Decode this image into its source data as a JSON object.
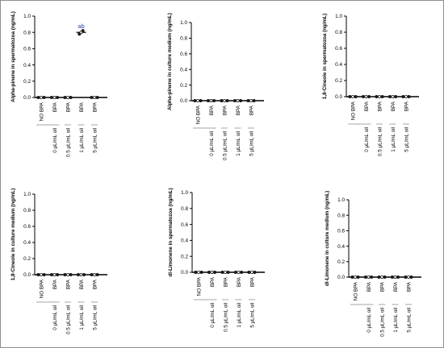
{
  "figure": {
    "tick_labels": [
      "0.0",
      "0.2",
      "0.4",
      "0.6",
      "0.8",
      "1.0"
    ],
    "annotation": "ab"
  },
  "chart_data": [
    {
      "type": "scatter",
      "ylabel": "Alpha-pinene in spermatozoa (ng/mL)",
      "ylim": [
        0,
        1.0
      ],
      "yticks": [
        0.0,
        0.2,
        0.4,
        0.6,
        0.8,
        1.0
      ],
      "categories": [
        "NO BPA",
        "BPA",
        "BPA",
        "BPA",
        "BPA"
      ],
      "groups": [
        "0 µL/mL oil",
        "0.5 µL/mL oil",
        "1 µL/mL oil",
        "5 µL/mL oil"
      ],
      "series": [
        {
          "values": [
            [
              0,
              0,
              0
            ],
            [
              0,
              0,
              0
            ],
            [
              0,
              0,
              0
            ],
            [
              0.78,
              0.8,
              0.82
            ],
            [
              0,
              0,
              0
            ]
          ]
        }
      ],
      "means": [
        0,
        0,
        0,
        0.8,
        0
      ],
      "annotations": [
        {
          "category_index": 3,
          "text": "ab"
        }
      ]
    },
    {
      "type": "scatter",
      "ylabel": "Alpha-pinene in culture medium (ng/mL)",
      "ylim": [
        0,
        1.0
      ],
      "yticks": [
        0.0,
        0.2,
        0.4,
        0.6,
        0.8,
        1.0
      ],
      "categories": [
        "NO BPA",
        "BPA",
        "BPA",
        "BPA",
        "BPA"
      ],
      "groups": [
        "0 µL/mL oil",
        "0.5 µL/mL oil",
        "1 µL/mL oil",
        "5 µL/mL oil"
      ],
      "series": [
        {
          "values": [
            [
              0,
              0,
              0
            ],
            [
              0,
              0,
              0
            ],
            [
              0,
              0,
              0
            ],
            [
              0,
              0,
              0
            ],
            [
              0,
              0,
              0
            ]
          ]
        }
      ],
      "means": [
        0,
        0,
        0,
        0,
        0
      ]
    },
    {
      "type": "scatter",
      "ylabel": "1,8-Cineole in spermatozoa (ng/mL)",
      "ylim": [
        0,
        1.0
      ],
      "yticks": [
        0.0,
        0.2,
        0.4,
        0.6,
        0.8,
        1.0
      ],
      "categories": [
        "NO BPA",
        "BPA",
        "BPA",
        "BPA",
        "BPA"
      ],
      "groups": [
        "0 µL/mL oil",
        "0.5 µL/mL oil",
        "1 µL/mL oil",
        "5 µL/mL oil"
      ],
      "series": [
        {
          "values": [
            [
              0,
              0,
              0
            ],
            [
              0,
              0,
              0
            ],
            [
              0,
              0,
              0
            ],
            [
              0,
              0,
              0
            ],
            [
              0,
              0,
              0
            ]
          ]
        }
      ],
      "means": [
        0,
        0,
        0,
        0,
        0
      ]
    },
    {
      "type": "scatter",
      "ylabel": "1,8-Cineole in culture medium (ng/mL)",
      "ylim": [
        0,
        1.0
      ],
      "yticks": [
        0.0,
        0.2,
        0.4,
        0.6,
        0.8,
        1.0
      ],
      "categories": [
        "NO BPA",
        "BPA",
        "BPA",
        "BPA",
        "BPA"
      ],
      "groups": [
        "0 µL/mL oil",
        "0.5 µL/mL oil",
        "1 µL/mL oil",
        "5 µL/mL oil"
      ],
      "series": [
        {
          "values": [
            [
              0,
              0,
              0
            ],
            [
              0,
              0,
              0
            ],
            [
              0,
              0,
              0
            ],
            [
              0,
              0,
              0
            ],
            [
              0,
              0,
              0
            ]
          ]
        }
      ],
      "means": [
        0,
        0,
        0,
        0,
        0
      ]
    },
    {
      "type": "scatter",
      "ylabel": "dl-Limonene in spermatozoa (ng/mL)",
      "ylim": [
        0,
        1.0
      ],
      "yticks": [
        0.0,
        0.2,
        0.4,
        0.6,
        0.8,
        1.0
      ],
      "categories": [
        "NO BPA",
        "BPA",
        "BPA",
        "BPA",
        "BPA"
      ],
      "groups": [
        "0 µL/mL oil",
        "0.5 µL/mL oil",
        "1 µL/mL oil",
        "5 µL/mL oil"
      ],
      "series": [
        {
          "values": [
            [
              0,
              0,
              0
            ],
            [
              0,
              0,
              0
            ],
            [
              0,
              0,
              0
            ],
            [
              0,
              0,
              0
            ],
            [
              0,
              0,
              0
            ]
          ]
        }
      ],
      "means": [
        0,
        0,
        0,
        0,
        0
      ]
    },
    {
      "type": "scatter",
      "ylabel": "dl-Limonene in culture medium (ng/mL)",
      "ylim": [
        0,
        1.0
      ],
      "yticks": [
        0.0,
        0.2,
        0.4,
        0.6,
        0.8,
        1.0
      ],
      "categories": [
        "NO BPA",
        "BPA",
        "BPA",
        "BPA",
        "BPA"
      ],
      "groups": [
        "0 µL/mL oil",
        "0.5 µL/mL oil",
        "1 µL/mL oil",
        "5 µL/mL oil"
      ],
      "series": [
        {
          "values": [
            [
              0,
              0,
              0
            ],
            [
              0,
              0,
              0
            ],
            [
              0,
              0,
              0
            ],
            [
              0,
              0,
              0
            ],
            [
              0,
              0,
              0
            ]
          ]
        }
      ],
      "means": [
        0,
        0,
        0,
        0,
        0
      ]
    }
  ],
  "colors": {
    "axis": "#000000",
    "point": "#1a1a1a",
    "annotation": "#2b3fa0",
    "bracket": "#a6a6a6"
  }
}
